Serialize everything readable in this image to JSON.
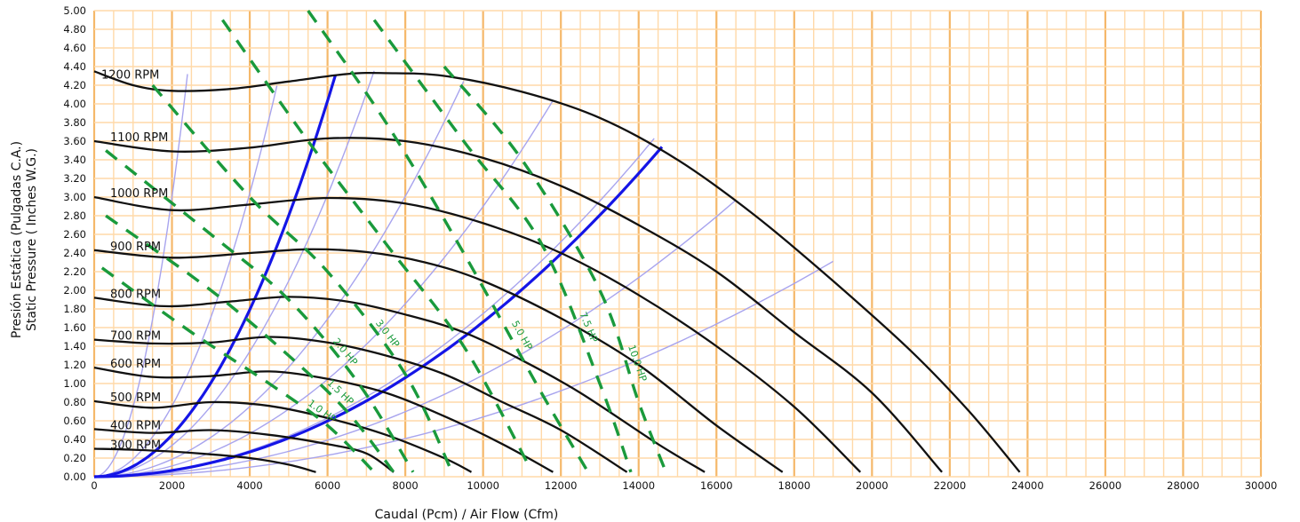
{
  "colors": {
    "grid_minor": "#ffd9a8",
    "grid_major": "#f5b86a",
    "rpm_curve": "#111111",
    "hp_curve": "#1a9a3c",
    "system_curve_light": "#a8a4ee",
    "system_curve_bold": "#1515e6"
  },
  "chart_data": {
    "type": "line",
    "title": "",
    "xlabel": "Caudal (Pcm) / Air Flow (Cfm)",
    "ylabel": [
      "Presión Estática (Pulgadas C.A.)",
      "Static Pressure ( Inches W.G.)"
    ],
    "xlim": [
      0,
      30000
    ],
    "ylim": [
      0,
      5
    ],
    "grid": true,
    "x_ticks": [
      "0",
      "2000",
      "4000",
      "6000",
      "8000",
      "10000",
      "12000",
      "14000",
      "16000",
      "18000",
      "20000",
      "22000",
      "24000",
      "26000",
      "28000",
      "30000"
    ],
    "y_ticks": [
      "0.00",
      "0.20",
      "0.40",
      "0.60",
      "0.80",
      "1.00",
      "1.20",
      "1.40",
      "1.60",
      "1.80",
      "2.00",
      "2.20",
      "2.40",
      "2.60",
      "2.80",
      "3.00",
      "3.20",
      "3.40",
      "3.60",
      "3.80",
      "4.00",
      "4.20",
      "4.40",
      "4.60",
      "4.80",
      "5.00"
    ],
    "rpm_curves": [
      {
        "name": "300 RPM",
        "points": [
          [
            0,
            0.3
          ],
          [
            1000,
            0.29
          ],
          [
            2000,
            0.27
          ],
          [
            3000,
            0.24
          ],
          [
            4000,
            0.2
          ],
          [
            5000,
            0.13
          ],
          [
            5700,
            0.05
          ]
        ]
      },
      {
        "name": "400 RPM",
        "points": [
          [
            0,
            0.51
          ],
          [
            1500,
            0.47
          ],
          [
            3000,
            0.5
          ],
          [
            4500,
            0.45
          ],
          [
            6000,
            0.35
          ],
          [
            7000,
            0.25
          ],
          [
            7700,
            0.05
          ]
        ]
      },
      {
        "name": "500 RPM",
        "points": [
          [
            0,
            0.81
          ],
          [
            1500,
            0.74
          ],
          [
            3000,
            0.8
          ],
          [
            4500,
            0.76
          ],
          [
            6000,
            0.63
          ],
          [
            7500,
            0.45
          ],
          [
            9000,
            0.2
          ],
          [
            9700,
            0.05
          ]
        ]
      },
      {
        "name": "600 RPM",
        "points": [
          [
            0,
            1.17
          ],
          [
            1500,
            1.07
          ],
          [
            3000,
            1.08
          ],
          [
            4500,
            1.13
          ],
          [
            6000,
            1.05
          ],
          [
            7500,
            0.9
          ],
          [
            9000,
            0.65
          ],
          [
            10500,
            0.35
          ],
          [
            11800,
            0.05
          ]
        ]
      },
      {
        "name": "700 RPM",
        "points": [
          [
            0,
            1.47
          ],
          [
            1500,
            1.43
          ],
          [
            3000,
            1.44
          ],
          [
            4500,
            1.5
          ],
          [
            6000,
            1.44
          ],
          [
            7500,
            1.3
          ],
          [
            9000,
            1.1
          ],
          [
            10500,
            0.8
          ],
          [
            12000,
            0.5
          ],
          [
            13700,
            0.05
          ]
        ]
      },
      {
        "name": "800 RPM",
        "points": [
          [
            0,
            1.92
          ],
          [
            1800,
            1.83
          ],
          [
            3500,
            1.88
          ],
          [
            5000,
            1.93
          ],
          [
            6500,
            1.88
          ],
          [
            8000,
            1.74
          ],
          [
            9500,
            1.55
          ],
          [
            11000,
            1.25
          ],
          [
            12500,
            0.9
          ],
          [
            14500,
            0.35
          ],
          [
            15700,
            0.05
          ]
        ]
      },
      {
        "name": "900 RPM",
        "points": [
          [
            0,
            2.43
          ],
          [
            2000,
            2.35
          ],
          [
            4000,
            2.4
          ],
          [
            5500,
            2.44
          ],
          [
            7000,
            2.41
          ],
          [
            8500,
            2.3
          ],
          [
            10000,
            2.1
          ],
          [
            12000,
            1.7
          ],
          [
            14000,
            1.2
          ],
          [
            16000,
            0.55
          ],
          [
            17700,
            0.05
          ]
        ]
      },
      {
        "name": "1000 RPM",
        "points": [
          [
            0,
            3.0
          ],
          [
            2000,
            2.86
          ],
          [
            4000,
            2.92
          ],
          [
            6000,
            2.99
          ],
          [
            8000,
            2.93
          ],
          [
            10000,
            2.72
          ],
          [
            12000,
            2.4
          ],
          [
            14000,
            1.95
          ],
          [
            16000,
            1.4
          ],
          [
            18000,
            0.75
          ],
          [
            19700,
            0.05
          ]
        ]
      },
      {
        "name": "1100 RPM",
        "points": [
          [
            0,
            3.6
          ],
          [
            2000,
            3.49
          ],
          [
            4000,
            3.53
          ],
          [
            6000,
            3.63
          ],
          [
            8000,
            3.6
          ],
          [
            10000,
            3.42
          ],
          [
            12000,
            3.12
          ],
          [
            14000,
            2.7
          ],
          [
            16000,
            2.2
          ],
          [
            18000,
            1.55
          ],
          [
            20000,
            0.9
          ],
          [
            21800,
            0.05
          ]
        ]
      },
      {
        "name": "1200 RPM",
        "points": [
          [
            0,
            4.35
          ],
          [
            1000,
            4.2
          ],
          [
            2000,
            4.14
          ],
          [
            3500,
            4.16
          ],
          [
            5000,
            4.24
          ],
          [
            6500,
            4.32
          ],
          [
            7500,
            4.33
          ],
          [
            9000,
            4.3
          ],
          [
            11000,
            4.13
          ],
          [
            13000,
            3.85
          ],
          [
            15000,
            3.4
          ],
          [
            17000,
            2.8
          ],
          [
            19000,
            2.1
          ],
          [
            21000,
            1.35
          ],
          [
            22500,
            0.7
          ],
          [
            23800,
            0.05
          ]
        ]
      }
    ],
    "hp_curves": [
      {
        "name": "1.0 HP",
        "label": "1.0 HP",
        "points": [
          [
            200,
            2.24
          ],
          [
            2500,
            1.55
          ],
          [
            4500,
            1.0
          ],
          [
            6000,
            0.55
          ],
          [
            7200,
            0.05
          ]
        ]
      },
      {
        "name": "1.5 HP",
        "label": "1.5 HP",
        "points": [
          [
            300,
            2.8
          ],
          [
            3000,
            2.0
          ],
          [
            5000,
            1.3
          ],
          [
            6500,
            0.7
          ],
          [
            7700,
            0.05
          ]
        ]
      },
      {
        "name": "2.0 HP",
        "label": "2.0 HP",
        "points": [
          [
            300,
            3.5
          ],
          [
            3000,
            2.6
          ],
          [
            5000,
            1.9
          ],
          [
            6800,
            1.0
          ],
          [
            8200,
            0.05
          ]
        ]
      },
      {
        "name": "3.0 HP",
        "label": "3.0 HP",
        "points": [
          [
            1500,
            4.2
          ],
          [
            4000,
            3.0
          ],
          [
            6000,
            2.2
          ],
          [
            8000,
            1.1
          ],
          [
            9200,
            0.05
          ]
        ]
      },
      {
        "name": "",
        "label": "",
        "points": [
          [
            3300,
            4.9
          ],
          [
            5500,
            3.6
          ],
          [
            7500,
            2.5
          ],
          [
            9500,
            1.4
          ],
          [
            11200,
            0.1
          ]
        ]
      },
      {
        "name": "5.0 HP",
        "label": "5.0 HP",
        "points": [
          [
            5500,
            5.0
          ],
          [
            7500,
            3.8
          ],
          [
            9500,
            2.4
          ],
          [
            11500,
            0.9
          ],
          [
            12700,
            0.05
          ]
        ]
      },
      {
        "name": "7.5 HP",
        "label": "7.5 HP",
        "points": [
          [
            7200,
            4.9
          ],
          [
            9500,
            3.6
          ],
          [
            11500,
            2.5
          ],
          [
            13000,
            1.0
          ],
          [
            13800,
            0.05
          ]
        ]
      },
      {
        "name": "10.0 HP",
        "label": "10.0 HP",
        "points": [
          [
            9000,
            4.4
          ],
          [
            11000,
            3.4
          ],
          [
            13000,
            2.0
          ],
          [
            14000,
            0.8
          ],
          [
            14700,
            0.05
          ]
        ]
      }
    ],
    "system_curves_light": [
      {
        "k": 7.5e-07,
        "xmax": 2400
      },
      {
        "k": 1.9e-07,
        "xmax": 4700
      },
      {
        "k": 8.4e-08,
        "xmax": 7200
      },
      {
        "k": 4.7e-08,
        "xmax": 9500
      },
      {
        "k": 2.9e-08,
        "xmax": 11800
      },
      {
        "k": 1.75e-08,
        "xmax": 14400
      },
      {
        "k": 1.09e-08,
        "xmax": 16500
      },
      {
        "k": 6.4e-09,
        "xmax": 19000
      }
    ],
    "system_curves_bold": [
      {
        "k": 1.12e-07,
        "xmax": 6200
      },
      {
        "k": 1.66e-08,
        "xmax": 14600
      }
    ]
  }
}
